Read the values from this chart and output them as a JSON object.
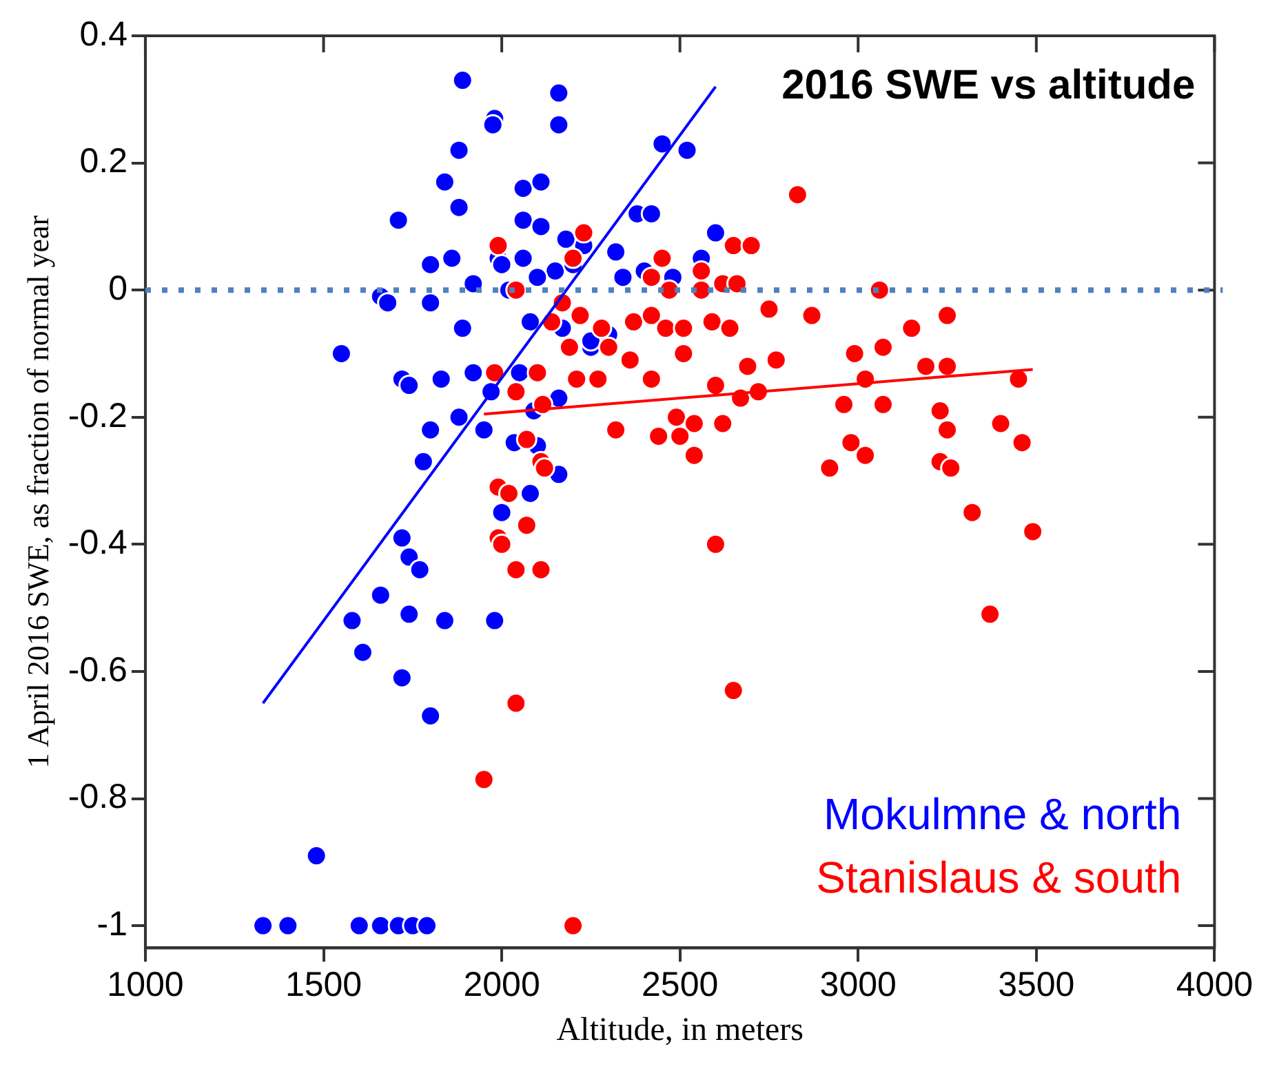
{
  "chart_data": {
    "type": "scatter",
    "title": "2016 SWE vs altitude",
    "xlabel": "Altitude, in meters",
    "ylabel": "1 April 2016 SWE, as fraction of normal year",
    "xlim": [
      1000,
      4000
    ],
    "xticks": [
      1000,
      1500,
      2000,
      2500,
      3000,
      3500,
      4000
    ],
    "ylim": [
      -1.035,
      0.4
    ],
    "yticks": [
      -1,
      -0.8,
      -0.6,
      -0.4,
      -0.2,
      0,
      0.2,
      0.4
    ],
    "grid": false,
    "legend": "bottom right",
    "marker": "circle",
    "ref_lines": [
      {
        "axis": "y",
        "value": 0,
        "color": "#4f81bd",
        "line_style": "dotted"
      }
    ],
    "series": [
      {
        "name": "Mokulmne & north",
        "color": "#0000ff",
        "x": [
          1890,
          2160,
          2160,
          1980,
          1975,
          1880,
          1840,
          2060,
          2110,
          1880,
          2060,
          2110,
          1710,
          2520,
          2450,
          2380,
          2420,
          2230,
          2180,
          2320,
          2600,
          1800,
          1860,
          1990,
          2060,
          2150,
          1920,
          2000,
          2020,
          2100,
          2200,
          2340,
          2400,
          2480,
          2560,
          1660,
          1680,
          1800,
          1890,
          2080,
          2170,
          2250,
          2300,
          2250,
          1550,
          1720,
          1880,
          1920,
          1970,
          2050,
          2090,
          2160,
          1740,
          1830,
          1950,
          1800,
          1780,
          2035,
          2100,
          2160,
          2080,
          2000,
          1720,
          1740,
          1770,
          1660,
          1580,
          1740,
          1840,
          1980,
          1610,
          1720,
          1800,
          1480,
          1330,
          1400,
          1600,
          1660,
          1710,
          1750,
          1790
        ],
        "values": [
          0.33,
          0.31,
          0.26,
          0.27,
          0.26,
          0.22,
          0.17,
          0.16,
          0.17,
          0.13,
          0.11,
          0.1,
          0.11,
          0.22,
          0.23,
          0.12,
          0.12,
          0.07,
          0.08,
          0.06,
          0.09,
          0.04,
          0.05,
          0.05,
          0.05,
          0.03,
          0.01,
          0.04,
          0,
          0.02,
          0.04,
          0.02,
          0.03,
          0.02,
          0.05,
          -0.01,
          -0.02,
          -0.02,
          -0.06,
          -0.05,
          -0.06,
          -0.09,
          -0.07,
          -0.08,
          -0.1,
          -0.14,
          -0.2,
          -0.13,
          -0.16,
          -0.13,
          -0.19,
          -0.17,
          -0.15,
          -0.14,
          -0.22,
          -0.22,
          -0.27,
          -0.24,
          -0.245,
          -0.29,
          -0.32,
          -0.35,
          -0.39,
          -0.42,
          -0.44,
          -0.48,
          -0.52,
          -0.51,
          -0.52,
          -0.52,
          -0.57,
          -0.61,
          -0.67,
          -0.89,
          -1,
          -1,
          -1,
          -1,
          -1,
          -1,
          -1
        ]
      },
      {
        "name": "Stanislaus & south",
        "color": "#ff0000",
        "x": [
          2830,
          2230,
          1990,
          2650,
          2700,
          2200,
          2450,
          2560,
          2420,
          2620,
          2660,
          2470,
          3060,
          2040,
          2170,
          2560,
          2750,
          2870,
          3250,
          2220,
          2370,
          2420,
          2590,
          3150,
          2140,
          2280,
          2460,
          2510,
          2640,
          2360,
          2190,
          2300,
          2510,
          2690,
          2770,
          2990,
          3070,
          3020,
          3190,
          3250,
          2100,
          1980,
          2040,
          2210,
          2270,
          2420,
          2600,
          2670,
          2720,
          2960,
          3070,
          3450,
          2490,
          2620,
          2540,
          2115,
          2320,
          2440,
          2540,
          2500,
          3230,
          3250,
          3400,
          3460,
          2110,
          2120,
          2070,
          2980,
          3020,
          3230,
          3260,
          2920,
          1990,
          2020,
          2070,
          1990,
          2000,
          2040,
          2110,
          2600,
          3490,
          3320,
          3370,
          2650,
          2040,
          1950,
          2200
        ],
        "values": [
          0.15,
          0.09,
          0.07,
          0.07,
          0.07,
          0.05,
          0.05,
          0.03,
          0.02,
          0.01,
          0.01,
          0,
          0,
          0,
          -0.02,
          0,
          -0.03,
          -0.04,
          -0.04,
          -0.04,
          -0.05,
          -0.04,
          -0.05,
          -0.06,
          -0.05,
          -0.06,
          -0.06,
          -0.06,
          -0.06,
          -0.11,
          -0.09,
          -0.09,
          -0.1,
          -0.12,
          -0.11,
          -0.1,
          -0.09,
          -0.14,
          -0.12,
          -0.12,
          -0.13,
          -0.13,
          -0.16,
          -0.14,
          -0.14,
          -0.14,
          -0.15,
          -0.17,
          -0.16,
          -0.18,
          -0.18,
          -0.14,
          -0.2,
          -0.21,
          -0.21,
          -0.18,
          -0.22,
          -0.23,
          -0.26,
          -0.23,
          -0.19,
          -0.22,
          -0.21,
          -0.24,
          -0.27,
          -0.28,
          -0.235,
          -0.24,
          -0.26,
          -0.27,
          -0.28,
          -0.28,
          -0.31,
          -0.32,
          -0.37,
          -0.39,
          -0.4,
          -0.44,
          -0.44,
          -0.4,
          -0.38,
          -0.35,
          -0.51,
          -0.63,
          -0.65,
          -0.77,
          -1
        ]
      },
      {
        "type": "line",
        "color": "#0000ff",
        "marker": "none",
        "x": [
          1330,
          2600
        ],
        "values": [
          -0.65,
          0.32
        ]
      },
      {
        "type": "line",
        "color": "#ff0000",
        "marker": "none",
        "x": [
          1950,
          3490
        ],
        "values": [
          -0.195,
          -0.125
        ]
      }
    ]
  }
}
